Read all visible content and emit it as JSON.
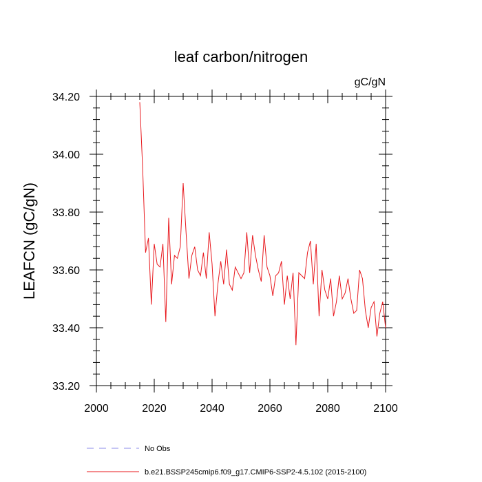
{
  "chart_data": {
    "type": "line",
    "title": "leaf carbon/nitrogen",
    "units": "gC/gN",
    "xlabel": "",
    "ylabel": "LEAFCN  (gC/gN)",
    "xlim": [
      2000,
      2100
    ],
    "ylim": [
      33.2,
      34.2
    ],
    "xticks": [
      2000,
      2020,
      2040,
      2060,
      2080,
      2100
    ],
    "xtick_labels": [
      "2000",
      "2020",
      "2040",
      "2060",
      "2080",
      "2100"
    ],
    "yticks": [
      33.2,
      33.4,
      33.6,
      33.8,
      34.0,
      34.2
    ],
    "ytick_labels": [
      "33.20",
      "33.40",
      "33.60",
      "33.80",
      "34.00",
      "34.20"
    ],
    "grid": false,
    "legend_position": "bottom",
    "series": [
      {
        "name": "b.e21.BSSP245cmip6.f09_g17.CMIP6-SSP2-4.5.102 (2015-2100)",
        "color": "#e8191e",
        "style": "solid",
        "x": [
          2015,
          2016,
          2017,
          2018,
          2019,
          2020,
          2021,
          2022,
          2023,
          2024,
          2025,
          2026,
          2027,
          2028,
          2029,
          2030,
          2031,
          2032,
          2033,
          2034,
          2035,
          2036,
          2037,
          2038,
          2039,
          2040,
          2041,
          2042,
          2043,
          2044,
          2045,
          2046,
          2047,
          2048,
          2049,
          2050,
          2051,
          2052,
          2053,
          2054,
          2055,
          2056,
          2057,
          2058,
          2059,
          2060,
          2061,
          2062,
          2063,
          2064,
          2065,
          2066,
          2067,
          2068,
          2069,
          2070,
          2071,
          2072,
          2073,
          2074,
          2075,
          2076,
          2077,
          2078,
          2079,
          2080,
          2081,
          2082,
          2083,
          2084,
          2085,
          2086,
          2087,
          2088,
          2089,
          2090,
          2091,
          2092,
          2093,
          2094,
          2095,
          2096,
          2097,
          2098,
          2099,
          2100
        ],
        "values": [
          34.18,
          33.95,
          33.66,
          33.71,
          33.48,
          33.69,
          33.62,
          33.61,
          33.69,
          33.42,
          33.78,
          33.55,
          33.65,
          33.64,
          33.68,
          33.9,
          33.73,
          33.57,
          33.65,
          33.68,
          33.6,
          33.58,
          33.66,
          33.57,
          33.73,
          33.62,
          33.44,
          33.55,
          33.63,
          33.55,
          33.67,
          33.55,
          33.53,
          33.61,
          33.59,
          33.57,
          33.59,
          33.73,
          33.59,
          33.72,
          33.65,
          33.6,
          33.56,
          33.72,
          33.61,
          33.58,
          33.51,
          33.58,
          33.59,
          33.63,
          33.48,
          33.58,
          33.5,
          33.59,
          33.34,
          33.59,
          33.58,
          33.57,
          33.66,
          33.7,
          33.55,
          33.69,
          33.44,
          33.6,
          33.53,
          33.5,
          33.57,
          33.44,
          33.49,
          33.58,
          33.5,
          33.52,
          33.57,
          33.5,
          33.45,
          33.46,
          33.6,
          33.57,
          33.46,
          33.4,
          33.47,
          33.49,
          33.37,
          33.45,
          33.49,
          33.4
        ]
      }
    ],
    "legend": [
      {
        "label": "No Obs",
        "color": "#8b8be8",
        "style": "dashed"
      },
      {
        "label": "b.e21.BSSP245cmip6.f09_g17.CMIP6-SSP2-4.5.102 (2015-2100)",
        "color": "#e8191e",
        "style": "solid"
      }
    ]
  }
}
